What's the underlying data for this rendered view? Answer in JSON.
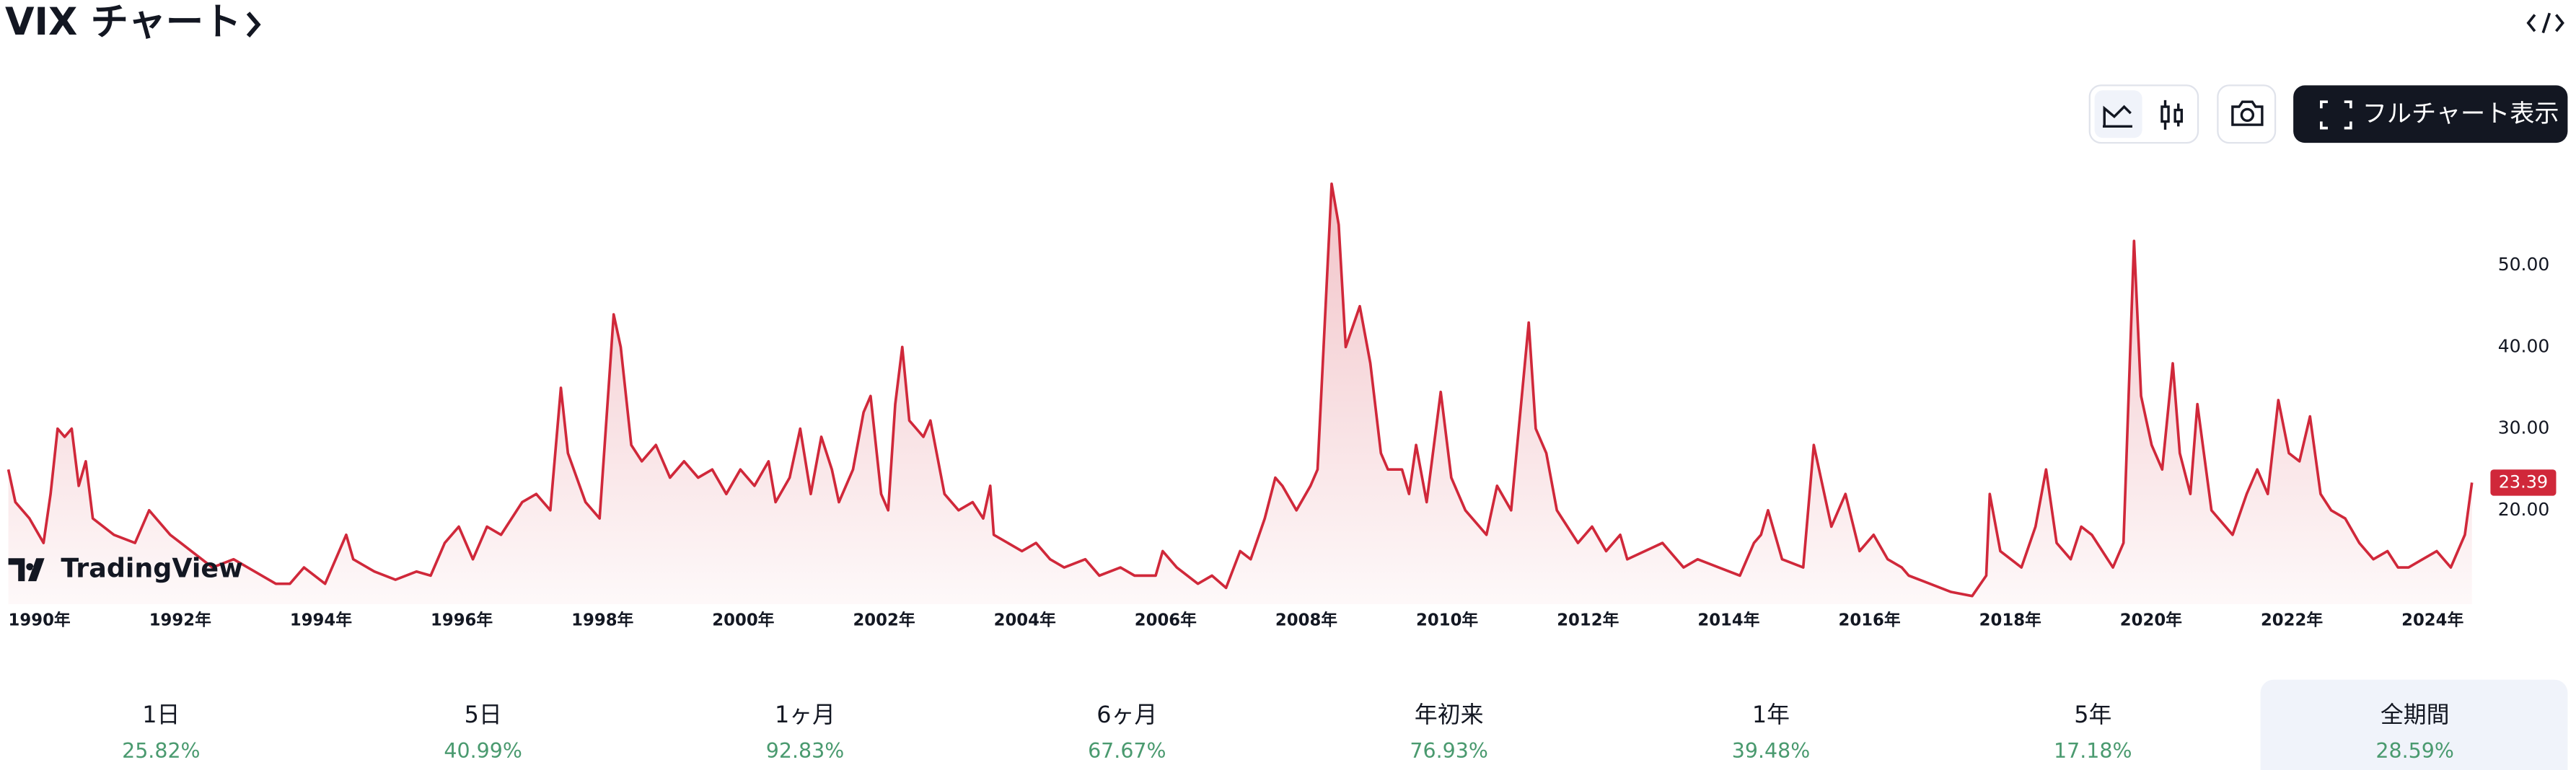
{
  "header": {
    "title": "VIX チャート"
  },
  "toolbar": {
    "full_chart_button": "フルチャート表示"
  },
  "logo": "TradingView",
  "chart_data": {
    "type": "area",
    "color": "#d0283a",
    "grid": false,
    "x": [
      1990.0,
      1990.1,
      1990.3,
      1990.5,
      1990.6,
      1990.7,
      1990.8,
      1990.9,
      1991.0,
      1991.1,
      1991.2,
      1991.5,
      1991.8,
      1992.0,
      1992.3,
      1992.6,
      1992.9,
      1993.2,
      1993.5,
      1993.8,
      1994.0,
      1994.2,
      1994.5,
      1994.8,
      1994.9,
      1995.2,
      1995.5,
      1995.8,
      1996.0,
      1996.2,
      1996.4,
      1996.6,
      1996.8,
      1997.0,
      1997.3,
      1997.5,
      1997.7,
      1997.85,
      1997.95,
      1998.2,
      1998.4,
      1998.6,
      1998.7,
      1998.85,
      1999.0,
      1999.2,
      1999.4,
      1999.6,
      1999.8,
      2000.0,
      2000.2,
      2000.4,
      2000.6,
      2000.8,
      2000.9,
      2001.1,
      2001.25,
      2001.4,
      2001.55,
      2001.7,
      2001.8,
      2002.0,
      2002.15,
      2002.25,
      2002.4,
      2002.5,
      2002.6,
      2002.7,
      2002.8,
      2003.0,
      2003.1,
      2003.3,
      2003.5,
      2003.7,
      2003.85,
      2003.95,
      2004.0,
      2004.2,
      2004.4,
      2004.6,
      2004.8,
      2005.0,
      2005.3,
      2005.5,
      2005.8,
      2006.0,
      2006.3,
      2006.4,
      2006.6,
      2006.9,
      2007.1,
      2007.3,
      2007.5,
      2007.65,
      2007.85,
      2008.0,
      2008.1,
      2008.3,
      2008.5,
      2008.6,
      2008.8,
      2008.9,
      2009.0,
      2009.2,
      2009.35,
      2009.5,
      2009.6,
      2009.8,
      2009.9,
      2010.0,
      2010.15,
      2010.35,
      2010.5,
      2010.7,
      2010.9,
      2011.0,
      2011.15,
      2011.35,
      2011.6,
      2011.7,
      2011.85,
      2012.0,
      2012.3,
      2012.5,
      2012.7,
      2012.9,
      2013.0,
      2013.5,
      2013.8,
      2014.0,
      2014.3,
      2014.6,
      2014.8,
      2014.9,
      2015.0,
      2015.2,
      2015.5,
      2015.65,
      2015.75,
      2015.9,
      2016.1,
      2016.3,
      2016.5,
      2016.7,
      2016.9,
      2017.0,
      2017.3,
      2017.6,
      2017.9,
      2018.1,
      2018.15,
      2018.3,
      2018.6,
      2018.8,
      2018.95,
      2019.1,
      2019.3,
      2019.45,
      2019.6,
      2019.9,
      2020.05,
      2020.2,
      2020.3,
      2020.45,
      2020.6,
      2020.75,
      2020.85,
      2021.0,
      2021.1,
      2021.3,
      2021.6,
      2021.8,
      2021.95,
      2022.1,
      2022.25,
      2022.4,
      2022.55,
      2022.7,
      2022.85,
      2023.0,
      2023.2,
      2023.4,
      2023.6,
      2023.8,
      2023.95,
      2024.1,
      2024.3,
      2024.5,
      2024.7,
      2024.9,
      2025.0
    ],
    "values": [
      25,
      21,
      19,
      16,
      22,
      30,
      29,
      30,
      23,
      26,
      19,
      17,
      16,
      20,
      17,
      15,
      13,
      14,
      12.5,
      11,
      11,
      13,
      11,
      17,
      14,
      12.5,
      11.5,
      12.5,
      12,
      16,
      18,
      14,
      18,
      17,
      21,
      22,
      20,
      35,
      27,
      21,
      19,
      44,
      40,
      28,
      26,
      28,
      24,
      26,
      24,
      25,
      22,
      25,
      23,
      26,
      21,
      24,
      30,
      22,
      29,
      25,
      21,
      25,
      32,
      34,
      22,
      20,
      33,
      40,
      31,
      29,
      31,
      22,
      20,
      21,
      19,
      23,
      17,
      16,
      15,
      16,
      14,
      13,
      14,
      12,
      13,
      12,
      12,
      15,
      13,
      11,
      12,
      10.5,
      15,
      14,
      19,
      24,
      23,
      20,
      23,
      25,
      60,
      55,
      40,
      45,
      38,
      27,
      25,
      25,
      22,
      28,
      21,
      34.5,
      24,
      20,
      18,
      17,
      23,
      20,
      43,
      30,
      27,
      20,
      16,
      18,
      15,
      17,
      14,
      16,
      13,
      14,
      13,
      12,
      16,
      17,
      20,
      14,
      13,
      28,
      24,
      18,
      22,
      15,
      17,
      14,
      13,
      12,
      11,
      10,
      9.5,
      12,
      22,
      15,
      13,
      18,
      25,
      16,
      14,
      18,
      17,
      13,
      16,
      53,
      34,
      28,
      25,
      38,
      27,
      22,
      33,
      20,
      17,
      22,
      25,
      22,
      33.5,
      27,
      26,
      31.5,
      22,
      20,
      19,
      16,
      14,
      15,
      13,
      13,
      14,
      15,
      13,
      17,
      23.39
    ],
    "xlim": [
      1990,
      2025.1
    ],
    "xticks": [
      {
        "value": 1990,
        "label": "1990年"
      },
      {
        "value": 1992,
        "label": "1992年"
      },
      {
        "value": 1994,
        "label": "1994年"
      },
      {
        "value": 1996,
        "label": "1996年"
      },
      {
        "value": 1998,
        "label": "1998年"
      },
      {
        "value": 2000,
        "label": "2000年"
      },
      {
        "value": 2002,
        "label": "2002年"
      },
      {
        "value": 2004,
        "label": "2004年"
      },
      {
        "value": 2006,
        "label": "2006年"
      },
      {
        "value": 2008,
        "label": "2008年"
      },
      {
        "value": 2010,
        "label": "2010年"
      },
      {
        "value": 2012,
        "label": "2012年"
      },
      {
        "value": 2014,
        "label": "2014年"
      },
      {
        "value": 2016,
        "label": "2016年"
      },
      {
        "value": 2018,
        "label": "2018年"
      },
      {
        "value": 2020,
        "label": "2020年"
      },
      {
        "value": 2022,
        "label": "2022年"
      },
      {
        "value": 2024,
        "label": "2024年"
      }
    ],
    "ylim": [
      8.5,
      62
    ],
    "yticks": [
      {
        "value": 20,
        "label": "20.00"
      },
      {
        "value": 30,
        "label": "30.00"
      },
      {
        "value": 40,
        "label": "40.00"
      },
      {
        "value": 50,
        "label": "50.00"
      }
    ]
  },
  "periods": [
    {
      "label": "1日",
      "change": "25.82%"
    },
    {
      "label": "5日",
      "change": "40.99%"
    },
    {
      "label": "1ヶ月",
      "change": "92.83%"
    },
    {
      "label": "6ヶ月",
      "change": "67.67%"
    },
    {
      "label": "年初来",
      "change": "76.93%"
    },
    {
      "label": "1年",
      "change": "39.48%"
    },
    {
      "label": "5年",
      "change": "17.18%"
    },
    {
      "label": "全期間",
      "change": "28.59%",
      "selected": true
    }
  ]
}
